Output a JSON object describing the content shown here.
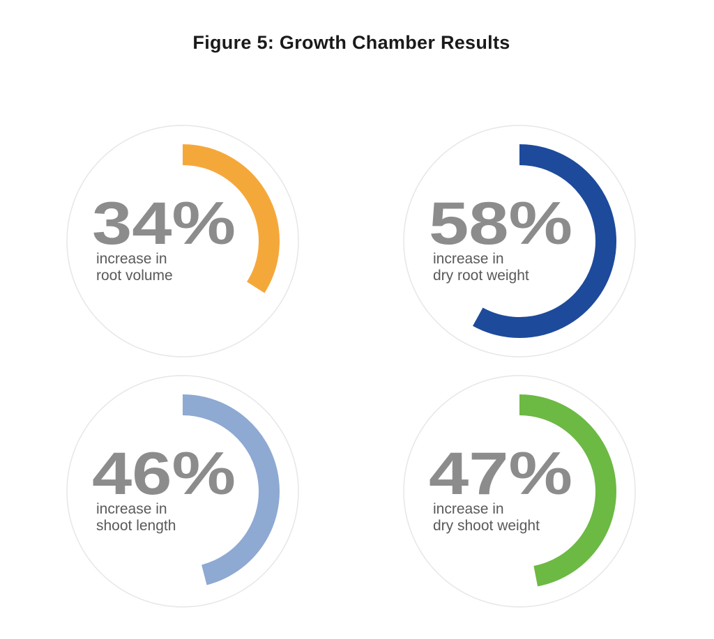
{
  "title": "Figure 5: Growth Chamber Results",
  "chart_data": {
    "type": "gauge",
    "title": "Figure 5: Growth Chamber Results",
    "items": [
      {
        "value": 34,
        "label": "34%",
        "caption_lines": [
          "increase in",
          "root volume"
        ],
        "color": "#F5A83A"
      },
      {
        "value": 58,
        "label": "58%",
        "caption_lines": [
          "increase in",
          "dry root weight"
        ],
        "color": "#1D4A9B"
      },
      {
        "value": 46,
        "label": "46%",
        "caption_lines": [
          "increase in",
          "shoot length"
        ],
        "color": "#8EA9D2"
      },
      {
        "value": 47,
        "label": "47%",
        "caption_lines": [
          "increase in",
          "dry shoot weight"
        ],
        "color": "#6CB944"
      }
    ]
  }
}
